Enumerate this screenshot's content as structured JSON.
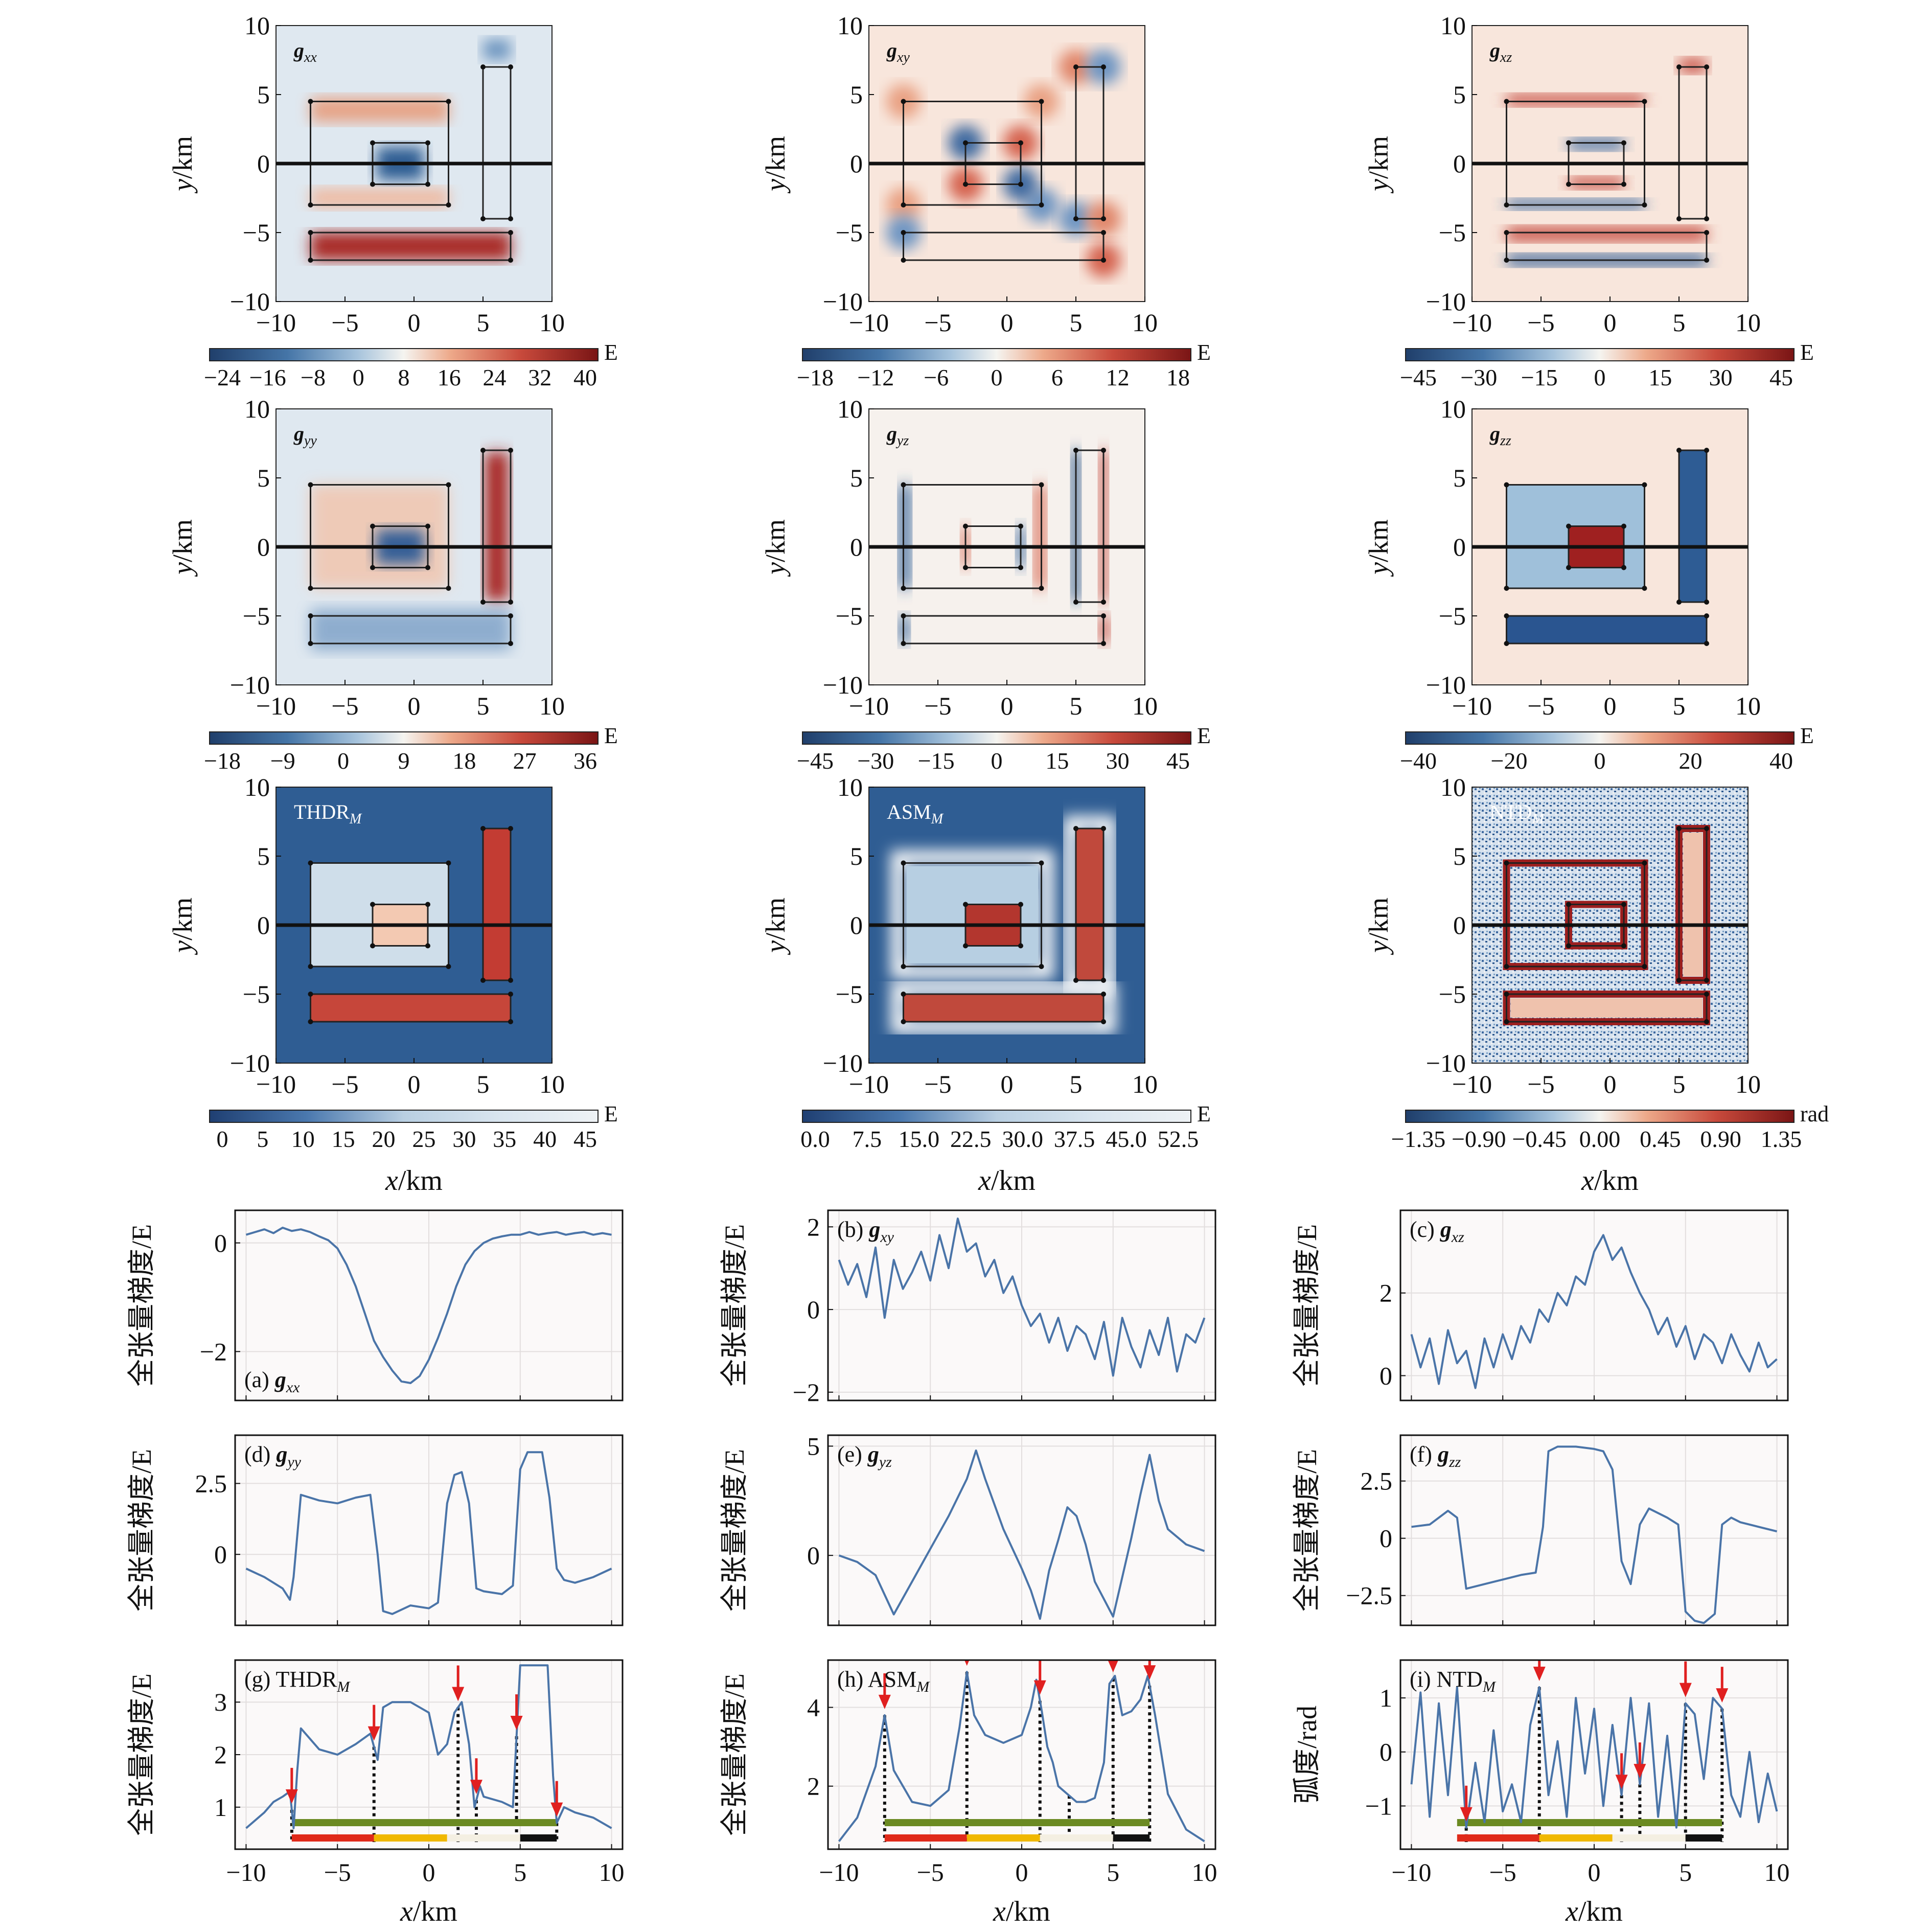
{
  "colors": {
    "map_low": "#2b5c8f",
    "map_mid": "#f5f4f0",
    "map_high": "#7a1515",
    "line": "#4a74a8",
    "arrow": "#e02020",
    "grid": "#e2dede",
    "bar_green": "#6b8a22",
    "bar_red": "#e02a1a",
    "bar_yellow": "#f0b800",
    "bar_black": "#111111"
  },
  "maps": [
    {
      "id": "gxx",
      "label": "g",
      "sub": "xx",
      "bold": true,
      "pattern": "gxx",
      "cbar_ticks": [
        "−24",
        "−16",
        "−8",
        "0",
        "8",
        "16",
        "24",
        "32",
        "40"
      ],
      "cbar_unit": "E"
    },
    {
      "id": "gxy",
      "label": "g",
      "sub": "xy",
      "bold": true,
      "pattern": "gxy",
      "cbar_ticks": [
        "−18",
        "−12",
        "−6",
        "0",
        "6",
        "12",
        "18"
      ],
      "cbar_unit": "E"
    },
    {
      "id": "gxz",
      "label": "g",
      "sub": "xz",
      "bold": true,
      "pattern": "gxz",
      "cbar_ticks": [
        "−45",
        "−30",
        "−15",
        "0",
        "15",
        "30",
        "45"
      ],
      "cbar_unit": "E"
    },
    {
      "id": "gyy",
      "label": "g",
      "sub": "yy",
      "bold": true,
      "pattern": "gyy",
      "cbar_ticks": [
        "−18",
        "−9",
        "0",
        "9",
        "18",
        "27",
        "36"
      ],
      "cbar_unit": "E"
    },
    {
      "id": "gyz",
      "label": "g",
      "sub": "yz",
      "bold": true,
      "pattern": "gyz",
      "cbar_ticks": [
        "−45",
        "−30",
        "−15",
        "0",
        "15",
        "30",
        "45"
      ],
      "cbar_unit": "E"
    },
    {
      "id": "gzz",
      "label": "g",
      "sub": "zz",
      "bold": true,
      "pattern": "gzz",
      "cbar_ticks": [
        "−40",
        "−20",
        "0",
        "20",
        "40"
      ],
      "cbar_unit": "E"
    },
    {
      "id": "thdr",
      "label": "THDR",
      "sub": "M",
      "bold": false,
      "pattern": "thdr",
      "cbar_ticks": [
        "0",
        "5",
        "10",
        "15",
        "20",
        "25",
        "30",
        "35",
        "40",
        "45"
      ],
      "cbar_unit": "E"
    },
    {
      "id": "asm",
      "label": "ASM",
      "sub": "M",
      "bold": false,
      "pattern": "asm",
      "cbar_ticks": [
        "0.0",
        "7.5",
        "15.0",
        "22.5",
        "30.0",
        "37.5",
        "45.0",
        "52.5"
      ],
      "cbar_unit": "E"
    },
    {
      "id": "ntd",
      "label": "NTD",
      "sub": "M",
      "bold": false,
      "pattern": "ntd",
      "cbar_ticks": [
        "−1.35",
        "−0.90",
        "−0.45",
        "0.00",
        "0.45",
        "0.90",
        "1.35"
      ],
      "cbar_unit": "rad"
    }
  ],
  "map_axes": {
    "ticks": [
      "−10",
      "−5",
      "0",
      "5",
      "10"
    ],
    "y_label_it": "y",
    "x_label_it": "x",
    "unit": "/km"
  },
  "bodies": [
    {
      "name": "large-frame",
      "x": [
        -7.5,
        2.5
      ],
      "y": [
        -3,
        4.5
      ]
    },
    {
      "name": "center-block",
      "x": [
        -3,
        1
      ],
      "y": [
        -1.5,
        1.5
      ]
    },
    {
      "name": "right-bar",
      "x": [
        5,
        7
      ],
      "y": [
        -4,
        7
      ]
    },
    {
      "name": "bottom-bar",
      "x": [
        -7.5,
        7
      ],
      "y": [
        -7,
        -5
      ]
    }
  ],
  "chart_data": [
    {
      "type": "line",
      "id": "a",
      "panel_label": "(a)",
      "var": "g",
      "sub": "xx",
      "bold": true,
      "label_pos": "bottom-left",
      "ylabel": "全张量梯度/E",
      "ylim": [
        -2.9,
        0.6
      ],
      "yticks": [
        "0",
        "−2"
      ],
      "ytick_values": [
        0,
        -2
      ],
      "x": [
        -10,
        -9.5,
        -9,
        -8.5,
        -8,
        -7.5,
        -7,
        -6.5,
        -6,
        -5.5,
        -5,
        -4.5,
        -4,
        -3.5,
        -3,
        -2.5,
        -2,
        -1.5,
        -1,
        -0.5,
        0,
        0.5,
        1,
        1.5,
        2,
        2.5,
        3,
        3.5,
        4,
        4.5,
        5,
        5.5,
        6,
        6.5,
        7,
        7.5,
        8,
        8.5,
        9,
        9.5,
        10
      ],
      "y": [
        0.15,
        0.2,
        0.25,
        0.18,
        0.28,
        0.22,
        0.25,
        0.2,
        0.12,
        0.05,
        -0.1,
        -0.4,
        -0.8,
        -1.3,
        -1.8,
        -2.1,
        -2.35,
        -2.55,
        -2.58,
        -2.45,
        -2.15,
        -1.75,
        -1.3,
        -0.8,
        -0.4,
        -0.15,
        0.0,
        0.08,
        0.12,
        0.15,
        0.15,
        0.2,
        0.15,
        0.18,
        0.2,
        0.15,
        0.18,
        0.2,
        0.15,
        0.18,
        0.15
      ]
    },
    {
      "type": "line",
      "id": "b",
      "panel_label": "(b)",
      "var": "g",
      "sub": "xy",
      "bold": true,
      "label_pos": "top-left",
      "ylabel": "全张量梯度/E",
      "ylim": [
        -2.2,
        2.4
      ],
      "yticks": [
        "2",
        "0",
        "−2"
      ],
      "ytick_values": [
        2,
        0,
        -2
      ],
      "x": [
        -10,
        -9.5,
        -9,
        -8.5,
        -8,
        -7.5,
        -7,
        -6.5,
        -6,
        -5.5,
        -5,
        -4.5,
        -4,
        -3.5,
        -3,
        -2.5,
        -2,
        -1.5,
        -1,
        -0.5,
        0,
        0.5,
        1,
        1.5,
        2,
        2.5,
        3,
        3.5,
        4,
        4.5,
        5,
        5.5,
        6,
        6.5,
        7,
        7.5,
        8,
        8.5,
        9,
        9.5,
        10
      ],
      "y": [
        1.2,
        0.6,
        1.1,
        0.3,
        1.5,
        -0.2,
        1.2,
        0.5,
        0.9,
        1.4,
        0.7,
        1.8,
        1.0,
        2.2,
        1.4,
        1.6,
        0.8,
        1.2,
        0.4,
        0.8,
        0.1,
        -0.4,
        -0.1,
        -0.8,
        -0.2,
        -1.0,
        -0.4,
        -0.6,
        -1.2,
        -0.3,
        -1.6,
        -0.2,
        -0.9,
        -1.4,
        -0.5,
        -1.1,
        -0.2,
        -1.5,
        -0.6,
        -0.8,
        -0.2
      ]
    },
    {
      "type": "line",
      "id": "c",
      "panel_label": "(c)",
      "var": "g",
      "sub": "xz",
      "bold": true,
      "label_pos": "top-left",
      "ylabel": "全张量梯度/E",
      "ylim": [
        -0.6,
        4.0
      ],
      "yticks": [
        "2",
        "0"
      ],
      "ytick_values": [
        2,
        0
      ],
      "x": [
        -10,
        -9.5,
        -9,
        -8.5,
        -8,
        -7.5,
        -7,
        -6.5,
        -6,
        -5.5,
        -5,
        -4.5,
        -4,
        -3.5,
        -3,
        -2.5,
        -2,
        -1.5,
        -1,
        -0.5,
        0,
        0.5,
        1,
        1.5,
        2,
        2.5,
        3,
        3.5,
        4,
        4.5,
        5,
        5.5,
        6,
        6.5,
        7,
        7.5,
        8,
        8.5,
        9,
        9.5,
        10
      ],
      "y": [
        1.0,
        0.2,
        0.9,
        -0.2,
        1.1,
        0.3,
        0.6,
        -0.3,
        0.9,
        0.2,
        1.0,
        0.4,
        1.2,
        0.8,
        1.6,
        1.3,
        2.0,
        1.7,
        2.4,
        2.2,
        3.0,
        3.4,
        2.8,
        3.1,
        2.5,
        2.0,
        1.6,
        1.0,
        1.4,
        0.7,
        1.2,
        0.4,
        1.0,
        0.8,
        0.3,
        1.0,
        0.5,
        0.1,
        0.8,
        0.2,
        0.4
      ]
    },
    {
      "type": "line",
      "id": "d",
      "panel_label": "(d)",
      "var": "g",
      "sub": "yy",
      "bold": true,
      "label_pos": "top-left",
      "ylabel": "全张量梯度/E",
      "ylim": [
        -2.5,
        4.2
      ],
      "yticks": [
        "2.5",
        "0"
      ],
      "ytick_values": [
        2.5,
        0
      ],
      "x": [
        -10,
        -9,
        -8,
        -7.6,
        -7.4,
        -7,
        -6,
        -5,
        -4,
        -3.2,
        -2.8,
        -2.5,
        -2,
        -1,
        0,
        0.5,
        1.0,
        1.4,
        1.8,
        2.2,
        2.6,
        3,
        4,
        4.6,
        5.0,
        5.4,
        6.2,
        6.6,
        7.0,
        7.4,
        8,
        9,
        10
      ],
      "y": [
        -0.5,
        -0.8,
        -1.2,
        -1.6,
        -0.8,
        2.1,
        1.9,
        1.8,
        2.0,
        2.1,
        0.0,
        -2.0,
        -2.1,
        -1.8,
        -1.9,
        -1.7,
        1.8,
        2.8,
        2.9,
        1.8,
        -1.2,
        -1.3,
        -1.4,
        -1.1,
        3.0,
        3.6,
        3.6,
        2.0,
        -0.5,
        -0.9,
        -1.0,
        -0.8,
        -0.5
      ]
    },
    {
      "type": "line",
      "id": "e",
      "panel_label": "(e)",
      "var": "g",
      "sub": "yz",
      "bold": true,
      "label_pos": "top-left",
      "ylabel": "全张量梯度/E",
      "ylim": [
        -3.2,
        5.5
      ],
      "yticks": [
        "5",
        "0"
      ],
      "ytick_values": [
        5,
        0
      ],
      "x": [
        -10,
        -9,
        -8,
        -7.5,
        -7,
        -6,
        -5,
        -4,
        -3,
        -2.5,
        -2,
        -1,
        0,
        0.5,
        1,
        1.5,
        2,
        2.5,
        3,
        3.5,
        4,
        4.5,
        5,
        5.5,
        6,
        6.5,
        7,
        7.5,
        8,
        9,
        10
      ],
      "y": [
        0,
        -0.3,
        -0.9,
        -1.8,
        -2.7,
        -1.2,
        0.3,
        1.8,
        3.5,
        4.8,
        3.5,
        1.2,
        -0.6,
        -1.6,
        -2.9,
        -0.7,
        0.7,
        2.2,
        1.8,
        0.5,
        -1.2,
        -2.0,
        -2.8,
        -1.0,
        0.8,
        2.8,
        4.6,
        2.5,
        1.2,
        0.5,
        0.2
      ]
    },
    {
      "type": "line",
      "id": "f",
      "panel_label": "(f)",
      "var": "g",
      "sub": "zz",
      "bold": true,
      "label_pos": "top-left",
      "ylabel": "全张量梯度/E",
      "ylim": [
        -3.8,
        4.5
      ],
      "yticks": [
        "2.5",
        "0",
        "−2.5"
      ],
      "ytick_values": [
        2.5,
        0,
        -2.5
      ],
      "x": [
        -10,
        -9,
        -8,
        -7.5,
        -7,
        -6,
        -5,
        -4,
        -3.2,
        -2.8,
        -2.5,
        -2,
        -1,
        0,
        0.5,
        1,
        1.5,
        2,
        2.5,
        3,
        4,
        4.6,
        5.0,
        5.5,
        6,
        6.6,
        7.0,
        7.5,
        8,
        9,
        10
      ],
      "y": [
        0.5,
        0.6,
        1.2,
        0.9,
        -2.2,
        -2.0,
        -1.8,
        -1.6,
        -1.5,
        0.5,
        3.8,
        4.0,
        4.0,
        3.9,
        3.8,
        3.0,
        -1.0,
        -2.0,
        0.6,
        1.3,
        0.9,
        0.6,
        -3.2,
        -3.6,
        -3.7,
        -3.3,
        0.6,
        0.9,
        0.7,
        0.5,
        0.3
      ]
    },
    {
      "type": "line",
      "id": "g",
      "panel_label": "(g)",
      "var": "THDR",
      "sub": "M",
      "bold": false,
      "label_pos": "top-left",
      "ylabel": "全张量梯度/E",
      "ylim": [
        0.2,
        3.8
      ],
      "yticks": [
        "3",
        "2",
        "1"
      ],
      "ytick_values": [
        3,
        2,
        1
      ],
      "x": [
        -10,
        -9,
        -8.5,
        -8,
        -7.6,
        -7.4,
        -7.2,
        -7,
        -6,
        -5,
        -4,
        -3.2,
        -2.8,
        -2.5,
        -2,
        -1,
        0,
        0.5,
        1,
        1.4,
        1.8,
        2.2,
        2.5,
        2.8,
        3,
        4,
        4.6,
        5.0,
        5.5,
        6.5,
        6.8,
        7.0,
        7.4,
        8,
        9,
        10
      ],
      "y": [
        0.6,
        0.9,
        1.1,
        1.2,
        1.3,
        0.6,
        1.7,
        2.5,
        2.1,
        2.0,
        2.2,
        2.4,
        1.9,
        2.9,
        3.0,
        3.0,
        2.8,
        2.0,
        2.2,
        2.8,
        3.0,
        2.2,
        1.0,
        1.4,
        1.2,
        1.1,
        1.0,
        3.7,
        3.7,
        3.7,
        1.6,
        0.7,
        1.0,
        0.9,
        0.8,
        0.6
      ],
      "arrows_x": [
        -7.5,
        -3.0,
        1.6,
        2.6,
        4.8,
        7.0
      ],
      "dotted_x": [
        -7.5,
        -3.0,
        1.6,
        2.6,
        4.8,
        7.0
      ]
    },
    {
      "type": "line",
      "id": "h",
      "panel_label": "(h)",
      "var": "ASM",
      "sub": "M",
      "bold": false,
      "label_pos": "top-left",
      "ylabel": "全张量梯度/E",
      "ylim": [
        0.4,
        5.2
      ],
      "yticks": [
        "4",
        "2"
      ],
      "ytick_values": [
        4,
        2
      ],
      "x": [
        -10,
        -9,
        -8,
        -7.5,
        -7,
        -6,
        -5,
        -4,
        -3.4,
        -3,
        -2.6,
        -2,
        -1,
        0,
        0.5,
        0.8,
        1.1,
        1.4,
        1.7,
        2,
        2.5,
        3,
        3.5,
        4,
        4.5,
        4.8,
        5.1,
        5.5,
        6,
        6.5,
        6.9,
        7.3,
        8,
        9,
        10
      ],
      "y": [
        0.6,
        1.2,
        2.5,
        3.8,
        2.4,
        1.6,
        1.5,
        1.9,
        3.5,
        4.9,
        3.8,
        3.3,
        3.1,
        3.3,
        4.0,
        4.7,
        3.9,
        3.0,
        2.6,
        2.0,
        1.8,
        1.6,
        1.6,
        1.7,
        2.6,
        4.6,
        4.8,
        3.8,
        3.9,
        4.2,
        4.8,
        3.8,
        1.8,
        0.9,
        0.6
      ],
      "arrows_x": [
        -7.5,
        -3.0,
        1.0,
        5.0,
        7.0
      ],
      "dotted_x": [
        -7.5,
        -3.0,
        1.0,
        2.6,
        5.0,
        7.0
      ]
    },
    {
      "type": "line",
      "id": "i",
      "panel_label": "(i)",
      "var": "NTD",
      "sub": "M",
      "bold": false,
      "label_pos": "top-left",
      "ylabel": "弧度/rad",
      "ylim": [
        -1.8,
        1.7
      ],
      "yticks": [
        "1",
        "0",
        "−1"
      ],
      "ytick_values": [
        1,
        0,
        -1
      ],
      "x": [
        -10,
        -9.5,
        -9,
        -8.5,
        -8,
        -7.5,
        -7,
        -6.5,
        -6,
        -5.5,
        -5,
        -4.5,
        -4,
        -3.5,
        -3,
        -2.5,
        -2,
        -1.5,
        -1,
        -0.5,
        0,
        0.5,
        1,
        1.5,
        2,
        2.5,
        3,
        3.5,
        4,
        4.5,
        5,
        5.5,
        6,
        6.5,
        7,
        7.5,
        8,
        8.5,
        9,
        9.5,
        10
      ],
      "y": [
        -0.6,
        1.1,
        -1.2,
        0.9,
        -0.8,
        1.2,
        -1.4,
        -0.2,
        -1.3,
        0.4,
        -1.1,
        -0.6,
        -1.3,
        0.5,
        1.2,
        -0.8,
        0.2,
        -1.2,
        1.0,
        -0.4,
        0.8,
        -1.0,
        0.5,
        -0.8,
        1.0,
        -0.6,
        0.9,
        -1.2,
        0.3,
        -1.4,
        0.9,
        0.7,
        -0.5,
        1.0,
        0.8,
        -0.8,
        -1.2,
        0.0,
        -1.3,
        -0.4,
        -1.1
      ],
      "arrows_x": [
        -7.0,
        -3.0,
        1.5,
        2.5,
        5.0,
        7.0
      ],
      "dotted_x": [
        -7.0,
        -3.0,
        1.5,
        2.5,
        5.0,
        7.0
      ]
    }
  ],
  "profile_axes": {
    "xticks": [
      "−10",
      "−5",
      "0",
      "5",
      "10"
    ],
    "xtick_values": [
      -10,
      -5,
      0,
      5,
      10
    ],
    "x_label_it": "x",
    "unit": "/km"
  },
  "bars": {
    "green": [
      -7.5,
      7.0
    ],
    "red": [
      -7.5,
      -3.0
    ],
    "yellow": [
      -3.0,
      1.0
    ],
    "black": [
      5.0,
      7.0
    ],
    "right_gap": [
      1.0,
      5.0
    ]
  }
}
